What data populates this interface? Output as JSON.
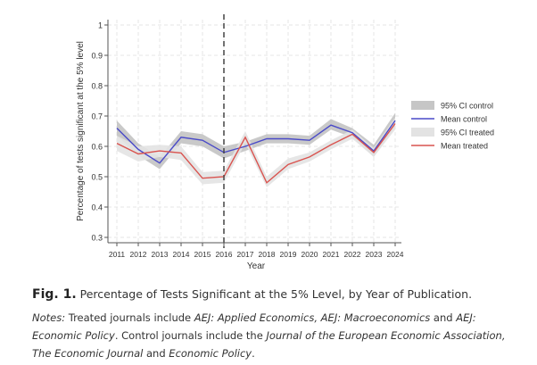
{
  "chart_data": {
    "type": "line",
    "title": "",
    "xlabel": "Year",
    "ylabel": "Percentage of tests significant at the 5% level",
    "x": [
      2011,
      2012,
      2013,
      2014,
      2015,
      2016,
      2017,
      2018,
      2019,
      2020,
      2021,
      2022,
      2023,
      2024
    ],
    "ylim": [
      0.3,
      1.0
    ],
    "yticks": [
      0.3,
      0.4,
      0.5,
      0.6,
      0.7,
      0.8,
      0.9,
      1
    ],
    "ytick_labels": [
      "0.3",
      "0.4",
      "0.5",
      "0.6",
      "0.7",
      "0.8",
      "0.9",
      "1"
    ],
    "xtick_labels": [
      "2011",
      "2012",
      "2013",
      "2014",
      "2015",
      "2016",
      "2017",
      "2018",
      "2019",
      "2020",
      "2021",
      "2022",
      "2023",
      "2024"
    ],
    "grid": true,
    "vline": {
      "x": 2016,
      "style": "dashed"
    },
    "legend_position": "right",
    "series": [
      {
        "name": "Mean control",
        "color": "#4a4ac8",
        "values": [
          0.66,
          0.59,
          0.545,
          0.63,
          0.62,
          0.58,
          0.6,
          0.625,
          0.625,
          0.62,
          0.67,
          0.645,
          0.585,
          0.685
        ],
        "ci_name": "95% CI control",
        "ci_color": "#c6c6c6",
        "ci_lower": [
          0.635,
          0.57,
          0.525,
          0.61,
          0.6,
          0.56,
          0.585,
          0.61,
          0.61,
          0.605,
          0.655,
          0.63,
          0.565,
          0.665
        ],
        "ci_upper": [
          0.685,
          0.61,
          0.565,
          0.65,
          0.64,
          0.6,
          0.615,
          0.64,
          0.64,
          0.635,
          0.69,
          0.66,
          0.605,
          0.71
        ]
      },
      {
        "name": "Mean treated",
        "color": "#d9534f",
        "values": [
          0.61,
          0.575,
          0.585,
          0.578,
          0.495,
          0.5,
          0.63,
          0.48,
          0.54,
          0.565,
          0.605,
          0.64,
          0.58,
          0.675
        ],
        "ci_name": "95% CI treated",
        "ci_color": "#e3e3e3",
        "ci_lower": [
          0.585,
          0.55,
          0.565,
          0.555,
          0.475,
          0.48,
          0.61,
          0.465,
          0.525,
          0.55,
          0.59,
          0.625,
          0.565,
          0.655
        ],
        "ci_upper": [
          0.635,
          0.6,
          0.605,
          0.6,
          0.515,
          0.52,
          0.65,
          0.5,
          0.56,
          0.58,
          0.62,
          0.655,
          0.595,
          0.695
        ]
      }
    ],
    "legend": [
      "95% CI control",
      "Mean control",
      "95% CI treated",
      "Mean treated"
    ]
  },
  "caption": {
    "fig_label": "Fig. 1.",
    "fig_text": " Percentage of Tests Significant at the 5% Level, by Year of Publication.",
    "notes_label": "Notes:",
    "notes_1": " Treated journals include ",
    "notes_j1": "AEJ: Applied Economics, AEJ: Macroeconomics",
    "notes_2": " and ",
    "notes_j2": "AEJ: Economic Policy",
    "notes_3": ". Control journals include the ",
    "notes_j3": "Journal of the European Economic Association, The Economic Journal",
    "notes_4": " and ",
    "notes_j4": "Economic Policy",
    "notes_5": "."
  }
}
